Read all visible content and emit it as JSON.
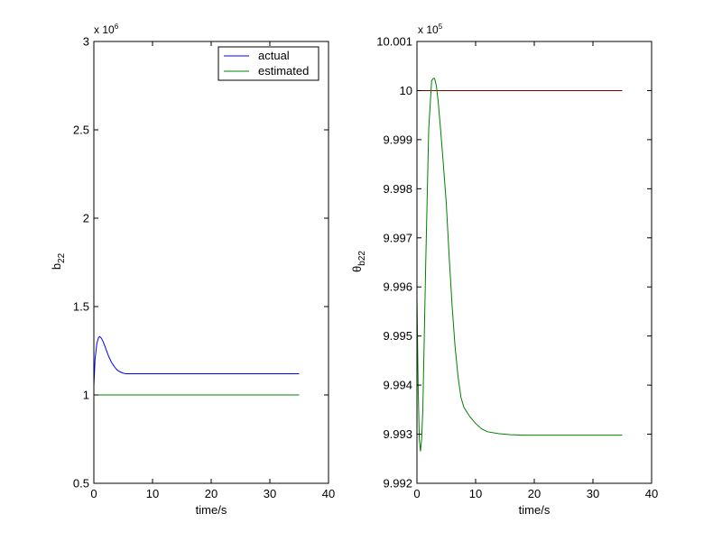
{
  "figure": {
    "background": "#ffffff"
  },
  "chart_data": [
    {
      "type": "line",
      "xlabel": "time/s",
      "ylabel": "b",
      "ylabel_sub": "22",
      "xlim": [
        0,
        40
      ],
      "ylim": [
        0.5,
        3
      ],
      "xticks": [
        0,
        10,
        20,
        30,
        40
      ],
      "xtick_labels": [
        "0",
        "10",
        "20",
        "30",
        "40"
      ],
      "yticks": [
        0.5,
        1,
        1.5,
        2,
        2.5,
        3
      ],
      "ytick_labels": [
        "0.5",
        "1",
        "1.5",
        "2",
        "2.5",
        "3"
      ],
      "y_multiplier": "x 10",
      "y_exponent": "6",
      "grid": false,
      "legend": "top-right",
      "series": [
        {
          "name": "actual",
          "color": "#0000ff",
          "x": [
            0,
            0.2,
            0.5,
            0.8,
            1.0,
            1.3,
            1.6,
            2.0,
            2.5,
            3.0,
            3.5,
            4.0,
            4.5,
            5.0,
            5.5,
            6.0,
            8.0,
            10.0,
            15.0,
            20.0,
            25.0,
            30.0,
            35.0
          ],
          "y": [
            1.05,
            1.2,
            1.29,
            1.325,
            1.33,
            1.32,
            1.3,
            1.265,
            1.22,
            1.185,
            1.16,
            1.14,
            1.13,
            1.123,
            1.12,
            1.12,
            1.12,
            1.12,
            1.12,
            1.12,
            1.12,
            1.12,
            1.12
          ]
        },
        {
          "name": "estimated",
          "color": "#008000",
          "x": [
            0,
            35
          ],
          "y": [
            1,
            1
          ]
        }
      ]
    },
    {
      "type": "line",
      "xlabel": "time/s",
      "ylabel": "θ",
      "ylabel_sub": "b22",
      "xlim": [
        0,
        40
      ],
      "ylim": [
        9.992,
        10.001
      ],
      "xticks": [
        0,
        10,
        20,
        30,
        40
      ],
      "xtick_labels": [
        "0",
        "10",
        "20",
        "30",
        "40"
      ],
      "yticks": [
        9.992,
        9.993,
        9.994,
        9.995,
        9.996,
        9.997,
        9.998,
        9.999,
        10,
        10.001
      ],
      "ytick_labels": [
        "9.992",
        "9.993",
        "9.994",
        "9.995",
        "9.996",
        "9.997",
        "9.998",
        "9.999",
        "10",
        "10.001"
      ],
      "y_multiplier": "x 10",
      "y_exponent": "5",
      "grid": false,
      "series": [
        {
          "color": "#800000",
          "x": [
            0,
            35
          ],
          "y": [
            10,
            10
          ]
        },
        {
          "color": "#008000",
          "x": [
            0,
            0.2,
            0.4,
            0.6,
            0.8,
            1.0,
            1.5,
            2.0,
            2.5,
            2.8,
            3.0,
            3.3,
            3.6,
            4.0,
            4.5,
            5.0,
            5.5,
            6.0,
            6.5,
            7.0,
            7.5,
            8.0,
            9.0,
            10.0,
            11.0,
            12.0,
            14.0,
            16.0,
            18.0,
            20.0,
            25.0,
            30.0,
            35.0
          ],
          "y": [
            9.9958,
            9.994,
            9.9929,
            9.99265,
            9.9929,
            9.9935,
            9.9965,
            9.9992,
            10.0002,
            10.00025,
            10.00025,
            10.0001,
            9.9998,
            9.99925,
            9.9985,
            9.9977,
            9.9966,
            9.9956,
            9.99478,
            9.99418,
            9.99375,
            9.99355,
            9.99336,
            9.99322,
            9.99311,
            9.99305,
            9.99301,
            9.99299,
            9.99298,
            9.99298,
            9.99298,
            9.99298,
            9.99298
          ]
        }
      ]
    }
  ]
}
